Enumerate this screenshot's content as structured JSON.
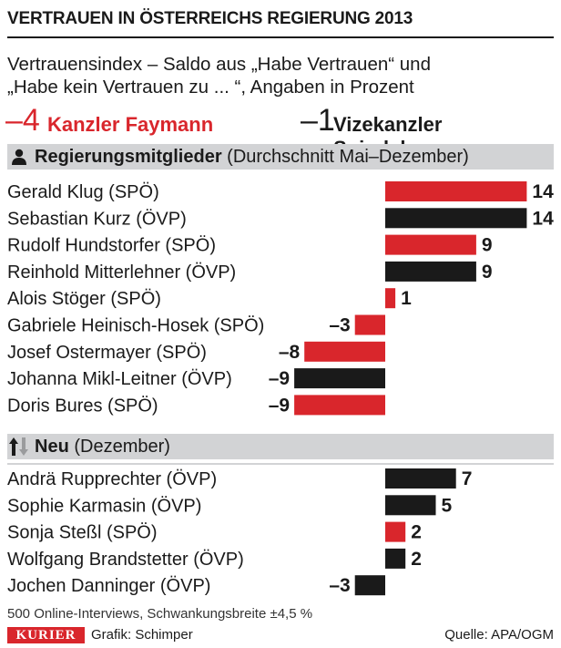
{
  "header": {
    "title": "VERTRAUEN IN ÖSTERREICHS REGIERUNG 2013",
    "subtitle_line1": "Vertrauensindex – Saldo aus „Habe Vertrauen“ und",
    "subtitle_line2": "„Habe kein Vertrauen zu ... “, Angaben in Prozent"
  },
  "leaders": {
    "faymann": {
      "value": "–4",
      "label": "Kanzler Faymann"
    },
    "spindelegger": {
      "value": "–1",
      "label": "Vizekanzler Spindelegger"
    }
  },
  "sections": {
    "members": {
      "title": "Regierungsmitglieder",
      "detail": "(Durchschnitt Mai–Dezember)"
    },
    "new": {
      "title": "Neu",
      "detail": "(Dezember)"
    }
  },
  "footer": {
    "note": "500 Online-Interviews, Schwankungsbreite ±4,5 %",
    "brand": "KURIER",
    "credit": "Grafik: Schimper",
    "source": "Quelle: APA/OGM"
  },
  "colors": {
    "spo": "#d9262c",
    "ovp": "#1a1a1a",
    "band": "#d2d3d5"
  },
  "chart_data": {
    "type": "bar",
    "orientation": "horizontal",
    "title": "VERTRAUEN IN ÖSTERREICHS REGIERUNG 2013",
    "xlim": [
      -9,
      14
    ],
    "groups": [
      {
        "name": "Regierungsmitglieder (Durchschnitt Mai–Dezember)",
        "rows": [
          {
            "label": "Gerald Klug (SPÖ)",
            "value": 14,
            "value_label": "14",
            "party": "spo"
          },
          {
            "label": "Sebastian Kurz (ÖVP)",
            "value": 14,
            "value_label": "14",
            "party": "ovp"
          },
          {
            "label": "Rudolf Hundstorfer (SPÖ)",
            "value": 9,
            "value_label": "9",
            "party": "spo"
          },
          {
            "label": "Reinhold Mitterlehner (ÖVP)",
            "value": 9,
            "value_label": "9",
            "party": "ovp"
          },
          {
            "label": "Alois Stöger (SPÖ)",
            "value": 1,
            "value_label": "1",
            "party": "spo"
          },
          {
            "label": "Gabriele Heinisch-Hosek (SPÖ)",
            "value": -3,
            "value_label": "–3",
            "party": "spo"
          },
          {
            "label": "Josef Ostermayer (SPÖ)",
            "value": -8,
            "value_label": "–8",
            "party": "spo"
          },
          {
            "label": "Johanna Mikl-Leitner (ÖVP)",
            "value": -9,
            "value_label": "–9",
            "party": "ovp"
          },
          {
            "label": "Doris Bures (SPÖ)",
            "value": -9,
            "value_label": "–9",
            "party": "spo"
          }
        ]
      },
      {
        "name": "Neu (Dezember)",
        "rows": [
          {
            "label": "Andrä Rupprechter (ÖVP)",
            "value": 7,
            "value_label": "7",
            "party": "ovp"
          },
          {
            "label": "Sophie Karmasin (ÖVP)",
            "value": 5,
            "value_label": "5",
            "party": "ovp"
          },
          {
            "label": "Sonja Steßl (SPÖ)",
            "value": 2,
            "value_label": "2",
            "party": "spo"
          },
          {
            "label": "Wolfgang Brandstetter (ÖVP)",
            "value": 2,
            "value_label": "2",
            "party": "ovp"
          },
          {
            "label": "Jochen Danninger (ÖVP)",
            "value": -3,
            "value_label": "–3",
            "party": "ovp"
          }
        ]
      }
    ]
  }
}
